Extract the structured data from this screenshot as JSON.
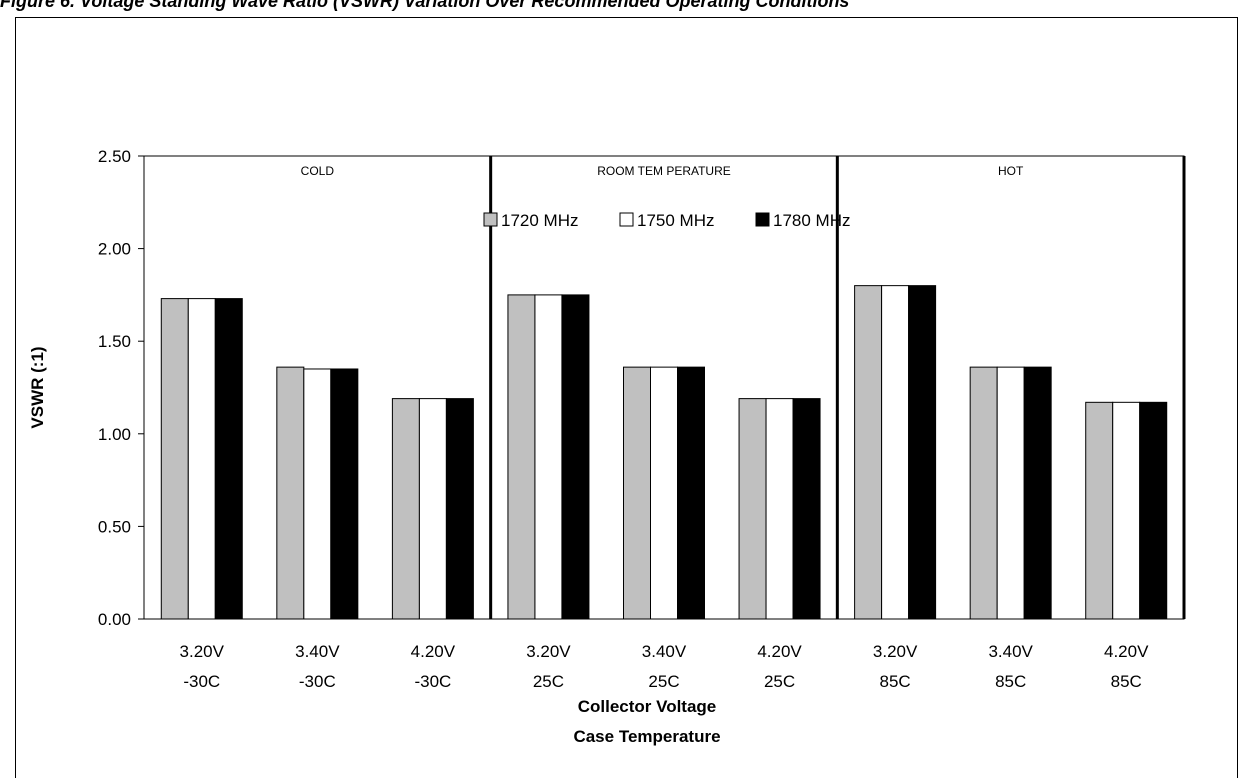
{
  "figure_title": "Figure 6. Voltage Standing Wave Ratio (VSWR) Variation Over Recommended Operating Conditions",
  "chart_data": {
    "type": "bar",
    "ylabel": "VSWR (:1)",
    "xlabel": [
      "Collector Voltage",
      "Case Temperature"
    ],
    "ylim": [
      0,
      2.5
    ],
    "yticks": [
      "0.00",
      "0.50",
      "1.00",
      "1.50",
      "2.00",
      "2.50"
    ],
    "grid": false,
    "legend_position": "top-center",
    "categories": [
      [
        "3.20V",
        "-30C"
      ],
      [
        "3.40V",
        "-30C"
      ],
      [
        "4.20V",
        "-30C"
      ],
      [
        "3.20V",
        "25C"
      ],
      [
        "3.40V",
        "25C"
      ],
      [
        "4.20V",
        "25C"
      ],
      [
        "3.20V",
        "85C"
      ],
      [
        "3.40V",
        "85C"
      ],
      [
        "4.20V",
        "85C"
      ]
    ],
    "groups": [
      "COLD",
      "ROOM TEM PERATURE",
      "HOT"
    ],
    "series": [
      {
        "name": "1720 MHz",
        "color": "#c0c0c0",
        "values": [
          1.73,
          1.36,
          1.19,
          1.75,
          1.36,
          1.19,
          1.8,
          1.36,
          1.17
        ]
      },
      {
        "name": "1750 MHz",
        "color": "#ffffff",
        "values": [
          1.73,
          1.35,
          1.19,
          1.75,
          1.36,
          1.19,
          1.8,
          1.36,
          1.17
        ]
      },
      {
        "name": "1780 MHz",
        "color": "#000000",
        "values": [
          1.73,
          1.35,
          1.19,
          1.75,
          1.36,
          1.19,
          1.8,
          1.36,
          1.17
        ]
      }
    ]
  }
}
